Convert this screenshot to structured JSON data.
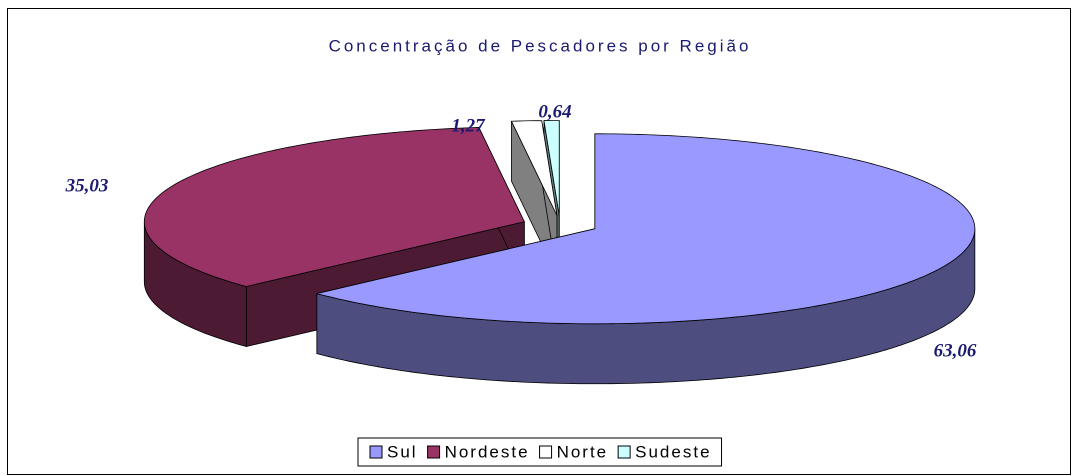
{
  "chart_data": {
    "type": "pie3d",
    "title": "Concentração de Pescadores por Região",
    "categories": [
      "Sul",
      "Nordeste",
      "Norte",
      "Sudeste"
    ],
    "values": [
      63.06,
      35.03,
      1.27,
      0.64
    ],
    "value_labels": [
      "63,06",
      "35,03",
      "1,27",
      "0,64"
    ],
    "colors": [
      "#9999ff",
      "#993366",
      "#ffffff",
      "#ccffff"
    ],
    "legend": "bottom"
  }
}
